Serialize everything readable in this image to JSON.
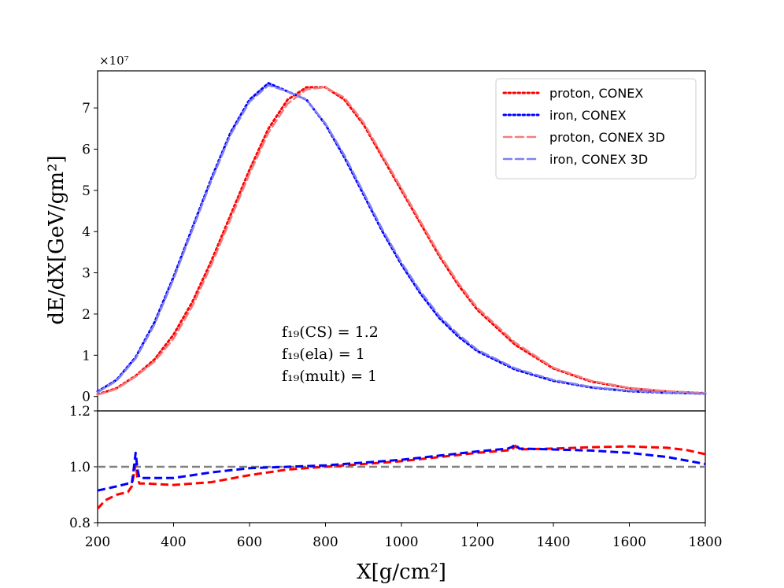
{
  "chart_data": [
    {
      "type": "line",
      "panel": "main",
      "ylabel": "dE/dX[GeV/gm²]",
      "yoffset": "×10⁷",
      "xlim": [
        200,
        1800
      ],
      "ylim": [
        -0.35,
        7.9
      ],
      "yticks": [
        "0",
        "1",
        "2",
        "3",
        "4",
        "5",
        "6",
        "7"
      ],
      "yticks_values": [
        0,
        1,
        2,
        3,
        4,
        5,
        6,
        7
      ],
      "annotations": [
        "f₁₉(CS) = 1.2",
        "f₁₉(ela) = 1",
        "f₁₉(mult) = 1"
      ],
      "legend_position": "upper right",
      "series": [
        {
          "name": "proton, CONEX",
          "color": "#ff0000",
          "style": "dotted",
          "x": [
            200,
            250,
            300,
            350,
            400,
            450,
            500,
            550,
            600,
            650,
            700,
            750,
            800,
            850,
            900,
            950,
            1000,
            1050,
            1100,
            1150,
            1200,
            1300,
            1400,
            1500,
            1600,
            1700,
            1800
          ],
          "y": [
            0.05,
            0.2,
            0.5,
            0.9,
            1.5,
            2.3,
            3.3,
            4.4,
            5.5,
            6.5,
            7.2,
            7.5,
            7.5,
            7.2,
            6.6,
            5.8,
            5.0,
            4.2,
            3.4,
            2.7,
            2.1,
            1.25,
            0.68,
            0.36,
            0.2,
            0.12,
            0.08
          ]
        },
        {
          "name": "iron, CONEX",
          "color": "#0000ff",
          "style": "dotted",
          "x": [
            200,
            250,
            300,
            350,
            400,
            450,
            500,
            550,
            600,
            650,
            700,
            750,
            800,
            850,
            900,
            950,
            1000,
            1050,
            1100,
            1150,
            1200,
            1300,
            1400,
            1500,
            1600,
            1700,
            1800
          ],
          "y": [
            0.12,
            0.4,
            0.95,
            1.8,
            2.9,
            4.1,
            5.3,
            6.4,
            7.2,
            7.6,
            7.4,
            7.2,
            6.6,
            5.8,
            4.9,
            4.0,
            3.2,
            2.5,
            1.9,
            1.45,
            1.1,
            0.65,
            0.38,
            0.22,
            0.13,
            0.09,
            0.07
          ]
        },
        {
          "name": "proton, CONEX 3D",
          "color": "#f08080",
          "style": "dashed",
          "x": [
            200,
            250,
            300,
            350,
            400,
            450,
            500,
            550,
            600,
            650,
            700,
            750,
            800,
            850,
            900,
            950,
            1000,
            1050,
            1100,
            1150,
            1200,
            1300,
            1400,
            1500,
            1600,
            1700,
            1800
          ],
          "y": [
            0.04,
            0.18,
            0.48,
            0.85,
            1.4,
            2.2,
            3.2,
            4.3,
            5.4,
            6.4,
            7.1,
            7.45,
            7.5,
            7.25,
            6.65,
            5.85,
            5.05,
            4.25,
            3.45,
            2.75,
            2.15,
            1.3,
            0.7,
            0.38,
            0.21,
            0.13,
            0.08
          ]
        },
        {
          "name": "iron, CONEX 3D",
          "color": "#8080f0",
          "style": "dashed",
          "x": [
            200,
            250,
            300,
            350,
            400,
            450,
            500,
            550,
            600,
            650,
            700,
            750,
            800,
            850,
            900,
            950,
            1000,
            1050,
            1100,
            1150,
            1200,
            1300,
            1400,
            1500,
            1600,
            1700,
            1800
          ],
          "y": [
            0.1,
            0.38,
            0.92,
            1.75,
            2.85,
            4.05,
            5.25,
            6.35,
            7.15,
            7.55,
            7.4,
            7.2,
            6.62,
            5.85,
            4.95,
            4.05,
            3.25,
            2.55,
            1.95,
            1.5,
            1.13,
            0.68,
            0.4,
            0.23,
            0.14,
            0.09,
            0.07
          ]
        }
      ]
    },
    {
      "type": "line",
      "panel": "ratio",
      "xlabel": "X[g/cm²]",
      "xlim": [
        200,
        1800
      ],
      "ylim": [
        0.8,
        1.2
      ],
      "xticks": [
        "200",
        "400",
        "600",
        "800",
        "1000",
        "1200",
        "1400",
        "1600",
        "1800"
      ],
      "xticks_values": [
        200,
        400,
        600,
        800,
        1000,
        1200,
        1400,
        1600,
        1800
      ],
      "yticks": [
        "0.8",
        "1.0",
        "1.2"
      ],
      "yticks_values": [
        0.8,
        1.0,
        1.2
      ],
      "reference_line": {
        "y": 1.0,
        "color": "#808080",
        "style": "dashed"
      },
      "series": [
        {
          "color": "#ff0000",
          "style": "dashed",
          "x": [
            200,
            220,
            250,
            280,
            290,
            295,
            300,
            305,
            310,
            330,
            400,
            500,
            600,
            700,
            800,
            900,
            1000,
            1100,
            1200,
            1290,
            1300,
            1310,
            1400,
            1500,
            1600,
            1700,
            1750,
            1800
          ],
          "y": [
            0.85,
            0.88,
            0.9,
            0.91,
            0.93,
            0.97,
            1.01,
            0.96,
            0.94,
            0.94,
            0.935,
            0.945,
            0.97,
            0.99,
            1.0,
            1.01,
            1.02,
            1.035,
            1.05,
            1.06,
            1.075,
            1.062,
            1.065,
            1.07,
            1.073,
            1.068,
            1.06,
            1.045
          ]
        },
        {
          "color": "#0000ff",
          "style": "dashed",
          "x": [
            200,
            250,
            280,
            290,
            295,
            300,
            305,
            310,
            350,
            400,
            500,
            600,
            700,
            800,
            900,
            1000,
            1100,
            1200,
            1280,
            1290,
            1300,
            1310,
            1400,
            1500,
            1600,
            1700,
            1800
          ],
          "y": [
            0.915,
            0.93,
            0.94,
            0.94,
            0.99,
            1.05,
            0.99,
            0.96,
            0.96,
            0.96,
            0.98,
            0.995,
            1.0,
            1.005,
            1.015,
            1.025,
            1.04,
            1.055,
            1.065,
            1.07,
            1.08,
            1.065,
            1.062,
            1.058,
            1.05,
            1.035,
            1.01
          ]
        }
      ]
    }
  ]
}
